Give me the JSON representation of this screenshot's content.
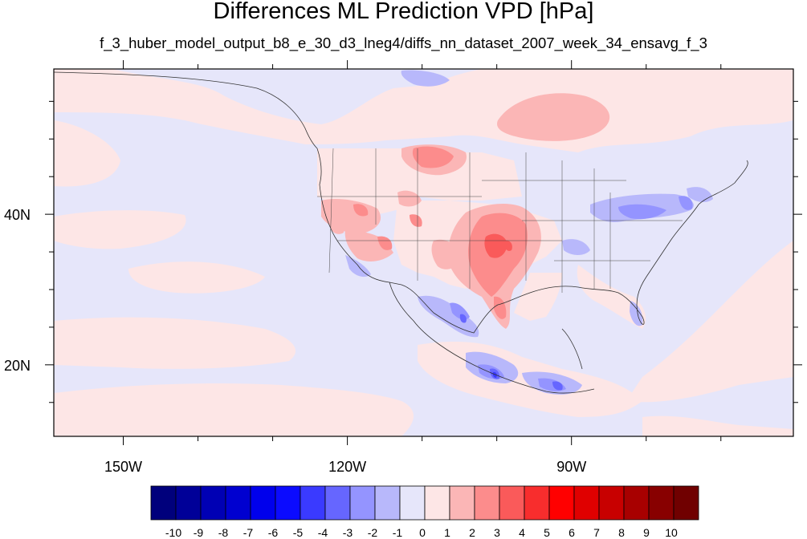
{
  "title": "Differences ML Prediction VPD [hPa]",
  "subtitle": "f_3_huber_model_output_b8_e_30_d3_lneg4/diffs_nn_dataset_2007_week_34_ensavg_f_3",
  "map": {
    "background_color": "#e6e6fa",
    "lon_range": [
      -159.3,
      -60.3
    ],
    "lat_range": [
      10.5,
      59.3
    ],
    "lon_ticks": [
      {
        "value": -150,
        "label": "150W"
      },
      {
        "value": -120,
        "label": "120W"
      },
      {
        "value": -90,
        "label": "90W"
      }
    ],
    "lon_minor_ticks": [
      -140,
      -130,
      -110,
      -100,
      -80,
      -70
    ],
    "lat_ticks": [
      {
        "value": 40,
        "label": "40N"
      },
      {
        "value": 20,
        "label": "20N"
      }
    ],
    "lat_minor_ticks": [
      55,
      50,
      45,
      35,
      30,
      25,
      15
    ]
  },
  "colorbar": {
    "labels": [
      "-10",
      "-9",
      "-8",
      "-7",
      "-6",
      "-5",
      "-4",
      "-3",
      "-2",
      "-1",
      "0",
      "1",
      "2",
      "3",
      "4",
      "5",
      "6",
      "7",
      "8",
      "9",
      "10"
    ],
    "colors": [
      "#00007c",
      "#000098",
      "#0000b4",
      "#0000d0",
      "#0000ec",
      "#0b0bff",
      "#3a3aff",
      "#6666ff",
      "#9494ff",
      "#b8b8fb",
      "#e6e6fa",
      "#fde6e6",
      "#fbb6b6",
      "#fc8c8c",
      "#fa5a5a",
      "#f82d2d",
      "#ff0000",
      "#e00000",
      "#c80000",
      "#a80000",
      "#880000",
      "#700000"
    ]
  }
}
